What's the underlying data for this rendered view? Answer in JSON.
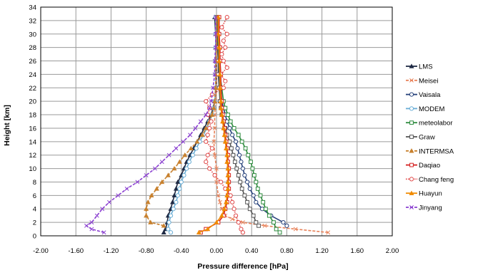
{
  "chart_data": {
    "type": "line",
    "xlabel": "Pressure difference  [hPa]",
    "ylabel": "Height [km]",
    "xlim": [
      -2.0,
      2.0
    ],
    "ylim": [
      0,
      34
    ],
    "x_ticks": [
      "-2.00",
      "-1.60",
      "-1.20",
      "-0.80",
      "-0.40",
      "0.00",
      "0.40",
      "0.80",
      "1.20",
      "1.60",
      "2.00"
    ],
    "y_ticks": [
      "0",
      "2",
      "4",
      "6",
      "8",
      "10",
      "12",
      "14",
      "16",
      "18",
      "20",
      "22",
      "24",
      "26",
      "28",
      "30",
      "32",
      "34"
    ],
    "grid": true,
    "legend_position": "right",
    "series": [
      {
        "name": "LMS",
        "color": "#1f2a44",
        "dash": "solid",
        "marker": "triangle",
        "points": [
          [
            -0.6,
            0.5
          ],
          [
            -0.58,
            1
          ],
          [
            -0.56,
            2
          ],
          [
            -0.55,
            3
          ],
          [
            -0.52,
            4
          ],
          [
            -0.5,
            5
          ],
          [
            -0.48,
            6
          ],
          [
            -0.46,
            7
          ],
          [
            -0.44,
            8
          ],
          [
            -0.4,
            9
          ],
          [
            -0.37,
            10
          ],
          [
            -0.34,
            11
          ],
          [
            -0.3,
            12
          ],
          [
            -0.26,
            13
          ],
          [
            -0.22,
            14
          ],
          [
            -0.18,
            15
          ],
          [
            -0.14,
            16
          ],
          [
            -0.1,
            17
          ],
          [
            -0.06,
            18
          ],
          [
            -0.04,
            19
          ],
          [
            -0.02,
            20
          ],
          [
            0.0,
            22
          ],
          [
            0.0,
            24
          ],
          [
            0.0,
            26
          ],
          [
            -0.01,
            28
          ],
          [
            -0.01,
            30
          ],
          [
            -0.02,
            32.5
          ]
        ]
      },
      {
        "name": "Meisei",
        "color": "#e8825a",
        "dash": "dashed",
        "marker": "x",
        "points": [
          [
            1.27,
            0.5
          ],
          [
            0.9,
            1
          ],
          [
            0.55,
            1.5
          ],
          [
            0.3,
            2
          ],
          [
            0.18,
            2.5
          ],
          [
            0.1,
            3
          ],
          [
            0.06,
            4
          ],
          [
            0.04,
            5
          ],
          [
            0.02,
            6
          ],
          [
            0.0,
            8
          ],
          [
            0.0,
            10
          ],
          [
            -0.02,
            12
          ],
          [
            -0.03,
            14
          ],
          [
            -0.02,
            16
          ],
          [
            -0.02,
            18
          ],
          [
            -0.01,
            20
          ],
          [
            0.0,
            22
          ],
          [
            0.0,
            24
          ],
          [
            0.0,
            26
          ],
          [
            0.0,
            28
          ],
          [
            0.0,
            30
          ],
          [
            0.0,
            32.5
          ]
        ]
      },
      {
        "name": "Vaisala",
        "color": "#25407a",
        "dash": "solid",
        "marker": "circle",
        "points": [
          [
            0.8,
            1.5
          ],
          [
            0.76,
            2
          ],
          [
            0.62,
            3
          ],
          [
            0.52,
            4
          ],
          [
            0.45,
            5
          ],
          [
            0.42,
            6
          ],
          [
            0.38,
            7
          ],
          [
            0.35,
            8
          ],
          [
            0.32,
            9
          ],
          [
            0.3,
            10
          ],
          [
            0.28,
            11
          ],
          [
            0.26,
            12
          ],
          [
            0.24,
            13
          ],
          [
            0.22,
            14
          ],
          [
            0.18,
            15
          ],
          [
            0.15,
            16
          ],
          [
            0.12,
            17
          ],
          [
            0.1,
            18
          ],
          [
            0.08,
            19
          ],
          [
            0.06,
            20
          ],
          [
            0.04,
            22
          ],
          [
            0.03,
            24
          ],
          [
            0.02,
            26
          ],
          [
            0.02,
            28
          ],
          [
            0.01,
            30
          ],
          [
            0.01,
            32.5
          ]
        ]
      },
      {
        "name": "MODEM",
        "color": "#6aaed6",
        "dash": "solid",
        "marker": "circle",
        "points": [
          [
            -0.52,
            0.5
          ],
          [
            -0.55,
            1
          ],
          [
            -0.54,
            2
          ],
          [
            -0.52,
            3
          ],
          [
            -0.49,
            4
          ],
          [
            -0.46,
            5
          ],
          [
            -0.44,
            6
          ],
          [
            -0.42,
            7
          ],
          [
            -0.4,
            8
          ],
          [
            -0.37,
            9
          ],
          [
            -0.34,
            10
          ],
          [
            -0.31,
            11
          ],
          [
            -0.27,
            12
          ],
          [
            -0.23,
            13
          ],
          [
            -0.19,
            14
          ],
          [
            -0.15,
            15
          ],
          [
            -0.11,
            16
          ],
          [
            -0.08,
            17
          ],
          [
            -0.05,
            18
          ],
          [
            -0.03,
            19
          ],
          [
            -0.02,
            20
          ],
          [
            -0.01,
            22
          ],
          [
            -0.01,
            24
          ],
          [
            -0.01,
            26
          ],
          [
            -0.01,
            28
          ],
          [
            -0.01,
            30
          ],
          [
            -0.01,
            32.5
          ]
        ]
      },
      {
        "name": "meteolabor",
        "color": "#2e8b3e",
        "dash": "solid",
        "marker": "square",
        "points": [
          [
            0.72,
            0.5
          ],
          [
            0.68,
            1
          ],
          [
            0.65,
            2
          ],
          [
            0.6,
            3
          ],
          [
            0.56,
            4
          ],
          [
            0.53,
            5
          ],
          [
            0.5,
            6
          ],
          [
            0.47,
            7
          ],
          [
            0.45,
            8
          ],
          [
            0.43,
            9
          ],
          [
            0.41,
            10
          ],
          [
            0.39,
            11
          ],
          [
            0.36,
            12
          ],
          [
            0.33,
            13
          ],
          [
            0.29,
            14
          ],
          [
            0.25,
            15
          ],
          [
            0.2,
            16
          ],
          [
            0.16,
            17
          ],
          [
            0.13,
            18
          ],
          [
            0.1,
            19
          ],
          [
            0.08,
            20
          ],
          [
            0.06,
            22
          ],
          [
            0.04,
            24
          ],
          [
            0.03,
            26
          ],
          [
            0.02,
            28
          ],
          [
            0.02,
            30
          ],
          [
            0.01,
            32.5
          ]
        ]
      },
      {
        "name": "Graw",
        "color": "#555555",
        "dash": "solid",
        "marker": "square",
        "points": [
          [
            0.48,
            1.5
          ],
          [
            0.45,
            2
          ],
          [
            0.42,
            3
          ],
          [
            0.38,
            4
          ],
          [
            0.35,
            5
          ],
          [
            0.32,
            6
          ],
          [
            0.29,
            7
          ],
          [
            0.27,
            8
          ],
          [
            0.25,
            9
          ],
          [
            0.23,
            10
          ],
          [
            0.21,
            11
          ],
          [
            0.19,
            12
          ],
          [
            0.17,
            13
          ],
          [
            0.15,
            14
          ],
          [
            0.12,
            15
          ],
          [
            0.1,
            16
          ],
          [
            0.08,
            17
          ],
          [
            0.06,
            18
          ],
          [
            0.05,
            19
          ],
          [
            0.04,
            20
          ],
          [
            0.03,
            22
          ],
          [
            0.02,
            24
          ],
          [
            0.02,
            26
          ],
          [
            0.01,
            28
          ],
          [
            0.01,
            30
          ],
          [
            0.01,
            32.5
          ]
        ]
      },
      {
        "name": "INTERMSA",
        "color": "#c8812e",
        "dash": "dashed",
        "marker": "triangle",
        "points": [
          [
            -0.6,
            1.5
          ],
          [
            -0.75,
            2
          ],
          [
            -0.8,
            3
          ],
          [
            -0.8,
            4
          ],
          [
            -0.78,
            5
          ],
          [
            -0.74,
            6
          ],
          [
            -0.68,
            7
          ],
          [
            -0.62,
            8
          ],
          [
            -0.55,
            9
          ],
          [
            -0.48,
            10
          ],
          [
            -0.42,
            11
          ],
          [
            -0.36,
            12
          ],
          [
            -0.29,
            13
          ],
          [
            -0.22,
            14
          ],
          [
            -0.16,
            15
          ],
          [
            -0.12,
            16
          ],
          [
            -0.08,
            17
          ],
          [
            -0.05,
            18
          ],
          [
            -0.03,
            19
          ],
          [
            -0.02,
            20
          ],
          [
            -0.01,
            22
          ],
          [
            -0.01,
            24
          ],
          [
            -0.01,
            26
          ],
          [
            0.0,
            28
          ],
          [
            0.0,
            30
          ],
          [
            0.0,
            32.5
          ]
        ]
      },
      {
        "name": "Daqiao",
        "color": "#d42020",
        "dash": "solid",
        "marker": "square",
        "points": [
          [
            -0.18,
            0.5
          ],
          [
            -0.12,
            1
          ],
          [
            0.02,
            2
          ],
          [
            0.08,
            3
          ],
          [
            0.1,
            4
          ],
          [
            0.12,
            5
          ],
          [
            0.13,
            6
          ],
          [
            0.14,
            7
          ],
          [
            0.14,
            8
          ],
          [
            0.14,
            9
          ],
          [
            0.14,
            10
          ],
          [
            0.13,
            11
          ],
          [
            0.13,
            12
          ],
          [
            0.12,
            13
          ],
          [
            0.11,
            14
          ],
          [
            0.1,
            15
          ],
          [
            0.09,
            16
          ],
          [
            0.08,
            17
          ],
          [
            0.07,
            18
          ],
          [
            0.06,
            19
          ],
          [
            0.06,
            20
          ],
          [
            0.05,
            22
          ],
          [
            0.05,
            24
          ],
          [
            0.04,
            26
          ],
          [
            0.04,
            28
          ],
          [
            0.03,
            30
          ],
          [
            0.03,
            32.5
          ]
        ]
      },
      {
        "name": "Chang feng",
        "color": "#e04848",
        "dash": "dotted",
        "marker": "circle",
        "points": [
          [
            0.3,
            0.5
          ],
          [
            0.28,
            1
          ],
          [
            0.25,
            2
          ],
          [
            0.22,
            3
          ],
          [
            0.2,
            4
          ],
          [
            0.18,
            5
          ],
          [
            0.16,
            6
          ],
          [
            0.1,
            7
          ],
          [
            0.05,
            8
          ],
          [
            -0.02,
            9
          ],
          [
            -0.08,
            10
          ],
          [
            -0.12,
            11
          ],
          [
            -0.1,
            12
          ],
          [
            -0.05,
            13
          ],
          [
            -0.12,
            14
          ],
          [
            -0.1,
            15
          ],
          [
            -0.08,
            16
          ],
          [
            -0.06,
            17
          ],
          [
            -0.1,
            18
          ],
          [
            -0.08,
            19
          ],
          [
            -0.12,
            20
          ],
          [
            -0.05,
            21
          ],
          [
            0.08,
            22
          ],
          [
            0.1,
            23
          ],
          [
            0.05,
            24
          ],
          [
            0.12,
            25
          ],
          [
            0.08,
            26
          ],
          [
            0.06,
            27
          ],
          [
            0.1,
            28
          ],
          [
            0.08,
            29
          ],
          [
            0.12,
            30
          ],
          [
            0.06,
            31
          ],
          [
            0.12,
            32.5
          ]
        ]
      },
      {
        "name": "Huayun",
        "color": "#f08a00",
        "dash": "solid",
        "marker": "triangle",
        "points": [
          [
            -0.2,
            0.5
          ],
          [
            -0.1,
            1
          ],
          [
            0.0,
            2
          ],
          [
            0.06,
            3
          ],
          [
            0.09,
            4
          ],
          [
            0.11,
            5
          ],
          [
            0.12,
            6
          ],
          [
            0.13,
            7
          ],
          [
            0.13,
            8
          ],
          [
            0.13,
            9
          ],
          [
            0.13,
            10
          ],
          [
            0.12,
            11
          ],
          [
            0.12,
            12
          ],
          [
            0.11,
            13
          ],
          [
            0.1,
            14
          ],
          [
            0.09,
            15
          ],
          [
            0.08,
            16
          ],
          [
            0.07,
            17
          ],
          [
            0.06,
            18
          ],
          [
            0.05,
            19
          ],
          [
            0.05,
            20
          ],
          [
            0.04,
            22
          ],
          [
            0.04,
            24
          ],
          [
            0.03,
            26
          ],
          [
            0.03,
            28
          ],
          [
            0.02,
            30
          ],
          [
            0.02,
            32.5
          ]
        ]
      },
      {
        "name": "Jinyang",
        "color": "#8a3fd0",
        "dash": "dashed",
        "marker": "x",
        "points": [
          [
            -1.28,
            0.5
          ],
          [
            -1.42,
            1
          ],
          [
            -1.48,
            1.5
          ],
          [
            -1.42,
            2
          ],
          [
            -1.36,
            3
          ],
          [
            -1.3,
            4
          ],
          [
            -1.22,
            5
          ],
          [
            -1.12,
            6
          ],
          [
            -1.02,
            7
          ],
          [
            -0.9,
            8
          ],
          [
            -0.8,
            9
          ],
          [
            -0.7,
            10
          ],
          [
            -0.62,
            11
          ],
          [
            -0.54,
            12
          ],
          [
            -0.46,
            13
          ],
          [
            -0.38,
            14
          ],
          [
            -0.3,
            15
          ],
          [
            -0.24,
            16
          ],
          [
            -0.18,
            17
          ],
          [
            -0.12,
            18
          ],
          [
            -0.08,
            19
          ],
          [
            -0.06,
            20
          ],
          [
            -0.04,
            22
          ],
          [
            -0.02,
            24
          ],
          [
            -0.02,
            26
          ],
          [
            -0.01,
            28
          ],
          [
            -0.01,
            30
          ],
          [
            -0.01,
            32.5
          ]
        ]
      }
    ]
  }
}
